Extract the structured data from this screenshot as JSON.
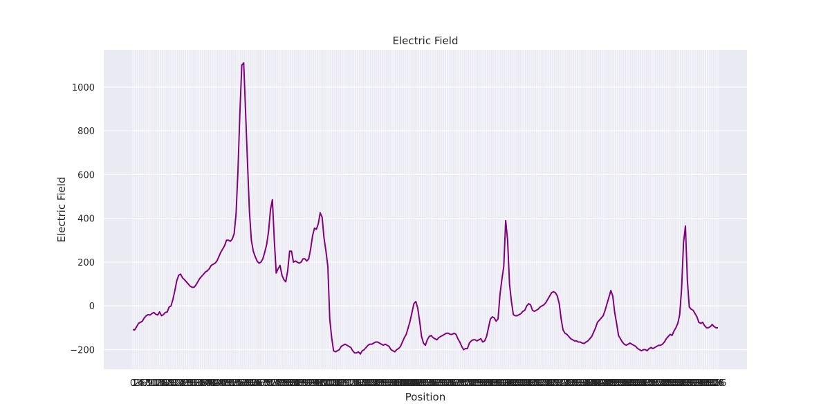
{
  "chart_data": {
    "type": "line",
    "title": "Electric Field",
    "xlabel": "Position",
    "ylabel": "Electric Field",
    "ylim": [
      -290,
      1170
    ],
    "yticks": [
      -200,
      0,
      200,
      400,
      600,
      800,
      1000
    ],
    "grid": true,
    "legend": "none",
    "x_tick_labels_visible": false,
    "series": [
      {
        "color": "#800080",
        "values": [
          -108,
          -110,
          -95,
          -80,
          -75,
          -70,
          -55,
          -45,
          -40,
          -42,
          -35,
          -30,
          -38,
          -42,
          -28,
          -45,
          -40,
          -30,
          -28,
          -5,
          0,
          30,
          70,
          115,
          140,
          145,
          128,
          120,
          110,
          100,
          90,
          85,
          85,
          95,
          110,
          125,
          135,
          145,
          155,
          160,
          170,
          185,
          190,
          195,
          205,
          225,
          245,
          260,
          275,
          300,
          300,
          295,
          305,
          330,
          420,
          620,
          880,
          1100,
          1110,
          880,
          650,
          430,
          300,
          250,
          225,
          205,
          195,
          200,
          215,
          245,
          280,
          340,
          440,
          485,
          300,
          150,
          170,
          185,
          140,
          120,
          110,
          160,
          250,
          250,
          200,
          205,
          200,
          195,
          200,
          215,
          215,
          205,
          215,
          260,
          320,
          355,
          350,
          375,
          425,
          405,
          310,
          250,
          180,
          -60,
          -145,
          -205,
          -210,
          -205,
          -200,
          -185,
          -180,
          -175,
          -180,
          -185,
          -190,
          -205,
          -215,
          -215,
          -210,
          -220,
          -205,
          -200,
          -190,
          -180,
          -175,
          -175,
          -170,
          -165,
          -165,
          -170,
          -175,
          -180,
          -175,
          -180,
          -185,
          -200,
          -205,
          -210,
          -200,
          -195,
          -185,
          -165,
          -145,
          -130,
          -100,
          -70,
          -30,
          10,
          20,
          -10,
          -70,
          -140,
          -170,
          -180,
          -155,
          -140,
          -135,
          -145,
          -150,
          -155,
          -145,
          -140,
          -135,
          -130,
          -125,
          -125,
          -130,
          -130,
          -125,
          -130,
          -150,
          -165,
          -185,
          -200,
          -195,
          -195,
          -170,
          -160,
          -155,
          -155,
          -160,
          -155,
          -150,
          -165,
          -160,
          -140,
          -100,
          -60,
          -50,
          -55,
          -70,
          -60,
          50,
          120,
          180,
          390,
          300,
          100,
          20,
          -40,
          -45,
          -45,
          -40,
          -35,
          -25,
          -20,
          0,
          10,
          5,
          -20,
          -25,
          -20,
          -15,
          -5,
          0,
          5,
          15,
          30,
          45,
          60,
          65,
          60,
          45,
          10,
          -60,
          -110,
          -125,
          -130,
          -140,
          -150,
          -155,
          -160,
          -160,
          -165,
          -165,
          -170,
          -172,
          -165,
          -160,
          -150,
          -140,
          -120,
          -100,
          -75,
          -65,
          -55,
          -45,
          -20,
          10,
          40,
          70,
          45,
          -30,
          -80,
          -135,
          -150,
          -165,
          -175,
          -180,
          -175,
          -170,
          -175,
          -180,
          -185,
          -195,
          -200,
          -205,
          -200,
          -200,
          -205,
          -195,
          -190,
          -195,
          -190,
          -185,
          -180,
          -180,
          -175,
          -165,
          -150,
          -140,
          -130,
          -135,
          -115,
          -100,
          -80,
          -40,
          80,
          290,
          365,
          120,
          -5,
          -15,
          -20,
          -35,
          -50,
          -75,
          -80,
          -75,
          -90,
          -100,
          -100,
          -95,
          -85,
          -95,
          -100,
          -100
        ]
      }
    ]
  }
}
